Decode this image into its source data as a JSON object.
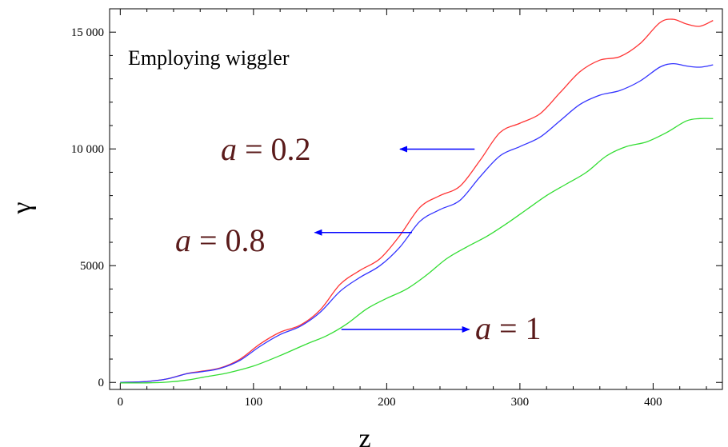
{
  "chart_data": {
    "type": "line",
    "title": "",
    "xlabel": "z",
    "ylabel": "γ",
    "xlim": [
      -8,
      452
    ],
    "ylim": [
      -300,
      16000
    ],
    "xticks": [
      0,
      100,
      200,
      300,
      400
    ],
    "xtick_labels": [
      "0",
      "100",
      "200",
      "300",
      "400"
    ],
    "yticks": [
      0,
      5000,
      10000,
      15000
    ],
    "ytick_labels": [
      "0",
      "5000",
      "10 000",
      "15 000"
    ],
    "grid": false,
    "series": [
      {
        "color": "#ff3333",
        "points": [
          [
            0,
            0
          ],
          [
            20,
            40
          ],
          [
            35,
            150
          ],
          [
            50,
            380
          ],
          [
            60,
            470
          ],
          [
            75,
            620
          ],
          [
            90,
            1000
          ],
          [
            105,
            1650
          ],
          [
            120,
            2150
          ],
          [
            135,
            2450
          ],
          [
            150,
            3100
          ],
          [
            165,
            4200
          ],
          [
            180,
            4800
          ],
          [
            195,
            5300
          ],
          [
            210,
            6300
          ],
          [
            225,
            7500
          ],
          [
            240,
            8000
          ],
          [
            255,
            8400
          ],
          [
            270,
            9500
          ],
          [
            285,
            10700
          ],
          [
            300,
            11100
          ],
          [
            315,
            11500
          ],
          [
            330,
            12400
          ],
          [
            345,
            13300
          ],
          [
            360,
            13800
          ],
          [
            375,
            13950
          ],
          [
            390,
            14500
          ],
          [
            405,
            15400
          ],
          [
            415,
            15550
          ],
          [
            425,
            15350
          ],
          [
            435,
            15250
          ],
          [
            445,
            15500
          ]
        ]
      },
      {
        "color": "#3333ff",
        "points": [
          [
            0,
            0
          ],
          [
            20,
            40
          ],
          [
            35,
            150
          ],
          [
            50,
            370
          ],
          [
            60,
            450
          ],
          [
            75,
            600
          ],
          [
            90,
            950
          ],
          [
            105,
            1550
          ],
          [
            120,
            2050
          ],
          [
            135,
            2400
          ],
          [
            150,
            3000
          ],
          [
            165,
            3900
          ],
          [
            180,
            4500
          ],
          [
            195,
            5000
          ],
          [
            210,
            5800
          ],
          [
            225,
            6900
          ],
          [
            240,
            7400
          ],
          [
            255,
            7800
          ],
          [
            270,
            8800
          ],
          [
            285,
            9700
          ],
          [
            300,
            10100
          ],
          [
            315,
            10500
          ],
          [
            330,
            11200
          ],
          [
            345,
            11900
          ],
          [
            360,
            12300
          ],
          [
            375,
            12500
          ],
          [
            390,
            12900
          ],
          [
            405,
            13500
          ],
          [
            415,
            13650
          ],
          [
            425,
            13550
          ],
          [
            435,
            13500
          ],
          [
            445,
            13600
          ]
        ]
      },
      {
        "color": "#33dd33",
        "points": [
          [
            0,
            -20
          ],
          [
            20,
            -20
          ],
          [
            35,
            10
          ],
          [
            50,
            100
          ],
          [
            65,
            250
          ],
          [
            80,
            400
          ],
          [
            100,
            700
          ],
          [
            120,
            1150
          ],
          [
            140,
            1650
          ],
          [
            155,
            2000
          ],
          [
            170,
            2500
          ],
          [
            185,
            3150
          ],
          [
            200,
            3600
          ],
          [
            215,
            4000
          ],
          [
            230,
            4600
          ],
          [
            245,
            5300
          ],
          [
            260,
            5800
          ],
          [
            275,
            6250
          ],
          [
            290,
            6800
          ],
          [
            305,
            7400
          ],
          [
            320,
            8000
          ],
          [
            335,
            8500
          ],
          [
            350,
            9000
          ],
          [
            365,
            9700
          ],
          [
            380,
            10100
          ],
          [
            395,
            10300
          ],
          [
            410,
            10700
          ],
          [
            425,
            11200
          ],
          [
            435,
            11300
          ],
          [
            445,
            11300
          ]
        ]
      }
    ],
    "arrows": [
      {
        "from": [
          266,
          9990
        ],
        "to": [
          210,
          9990
        ]
      },
      {
        "from": [
          219,
          6420
        ],
        "to": [
          146,
          6420
        ]
      },
      {
        "from": [
          166,
          2270
        ],
        "to": [
          262,
          2270
        ]
      }
    ]
  },
  "annotations": {
    "title_text": "Employing wiggler",
    "a1_var": "a",
    "a1_rest": " = 0.2",
    "a2_var": "a",
    "a2_rest": " = 0.8",
    "a3_var": "a",
    "a3_rest": " = 1"
  }
}
